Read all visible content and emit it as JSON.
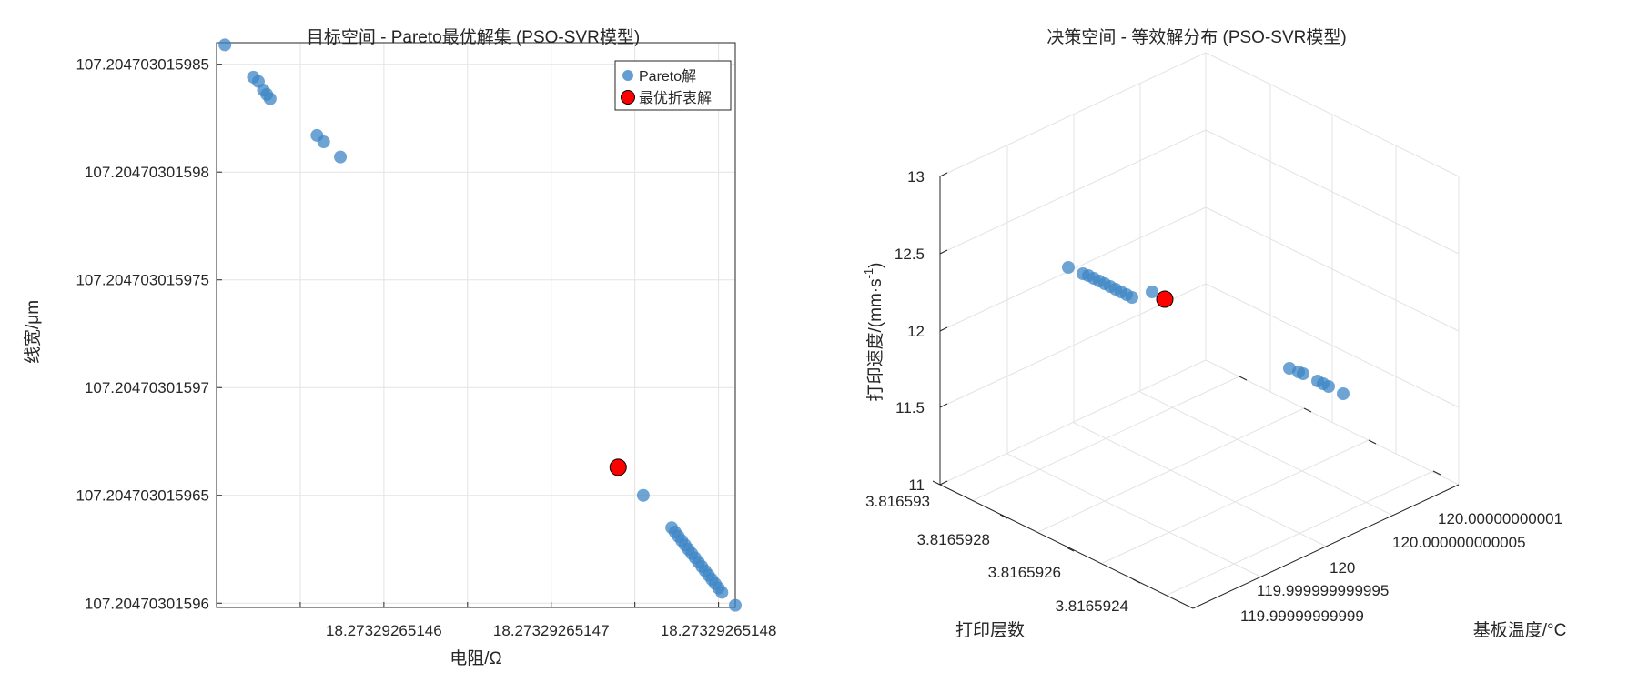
{
  "chart_data": [
    {
      "type": "scatter",
      "title": "目标空间 - Pareto最优解集 (PSO-SVR模型)",
      "xlabel": "电阻/Ω",
      "ylabel": "线宽/μm",
      "x_ticks": [
        "18.27329265146",
        "18.27329265147",
        "18.27329265148"
      ],
      "y_ticks": [
        "107.20470301596",
        "107.204703015965",
        "107.20470301597",
        "107.204703015975",
        "107.20470301598",
        "107.204703015985"
      ],
      "x_tick_values": [
        1,
        2,
        3
      ],
      "y_tick_values": [
        0,
        0.5,
        1,
        1.5,
        2,
        2.5
      ],
      "xlim": [
        0.0,
        3.1
      ],
      "ylim": [
        -0.02,
        2.6
      ],
      "axis_note": "x ticks in units of 1e-11 offset from 18.27329265145; y ticks in units of 1e-11 offset from 107.20470301596",
      "legend": [
        "Pareto解",
        "最优折衷解"
      ],
      "legend_position": "top-right",
      "grid": true,
      "series": [
        {
          "name": "Pareto解",
          "color": "#3d85c6",
          "points": [
            [
              0.05,
              2.59
            ],
            [
              0.22,
              2.44
            ],
            [
              0.25,
              2.42
            ],
            [
              0.28,
              2.38
            ],
            [
              0.3,
              2.36
            ],
            [
              0.32,
              2.34
            ],
            [
              0.6,
              2.17
            ],
            [
              0.64,
              2.14
            ],
            [
              0.74,
              2.07
            ],
            [
              2.55,
              0.5
            ],
            [
              2.72,
              0.35
            ],
            [
              2.74,
              0.33
            ],
            [
              2.76,
              0.31
            ],
            [
              2.78,
              0.29
            ],
            [
              2.8,
              0.27
            ],
            [
              2.82,
              0.25
            ],
            [
              2.84,
              0.23
            ],
            [
              2.86,
              0.21
            ],
            [
              2.88,
              0.19
            ],
            [
              2.9,
              0.17
            ],
            [
              2.92,
              0.15
            ],
            [
              2.94,
              0.13
            ],
            [
              2.96,
              0.11
            ],
            [
              2.98,
              0.09
            ],
            [
              3.0,
              0.07
            ],
            [
              3.02,
              0.05
            ],
            [
              3.1,
              -0.01
            ]
          ]
        },
        {
          "name": "最优折衷解",
          "color": "#ff0000",
          "points": [
            [
              2.4,
              0.63
            ]
          ]
        }
      ]
    },
    {
      "type": "scatter3d",
      "title": "决策空间 - 等效解分布 (PSO-SVR模型)",
      "xlabel": "打印层数",
      "ylabel": "基板温度/°C",
      "zlabel": "打印速度/(mm·s",
      "zlabel_superscript": "-1",
      "zlabel_close": ")",
      "x_ticks": [
        "3.816593",
        "3.8165928",
        "3.8165926",
        "3.8165924"
      ],
      "y_ticks": [
        "120.00000000001",
        "120.000000000005",
        "120",
        "119.999999999995",
        "119.99999999999"
      ],
      "z_ticks": [
        "13",
        "12.5",
        "12",
        "11.5",
        "11"
      ],
      "zlim": [
        11,
        13
      ],
      "grid": true,
      "series": [
        {
          "name": "Pareto解",
          "color": "#3d85c6",
          "points_projected": "cluster near z≈12.4 and cluster near z≈11.6"
        },
        {
          "name": "最优折衷解",
          "color": "#ff0000",
          "approx_z": 12.2
        }
      ]
    }
  ]
}
